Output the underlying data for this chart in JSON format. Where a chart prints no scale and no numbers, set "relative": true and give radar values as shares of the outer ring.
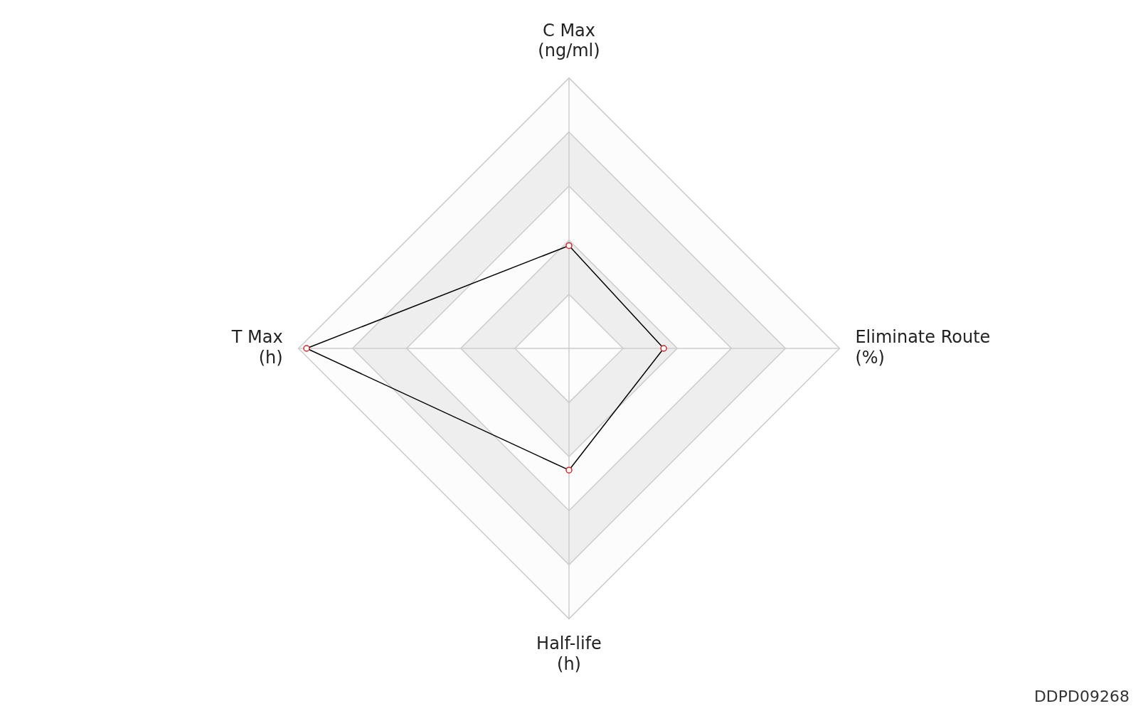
{
  "chart_data": {
    "type": "radar",
    "relative": true,
    "categories": [
      "C Max\n(ng/ml)",
      "Eliminate Route\n(%)",
      "Half-life\n(h)",
      "T Max\n(h)"
    ],
    "series": [
      {
        "color": "#000000",
        "values": [
          0.38,
          0.35,
          0.45,
          0.97
        ]
      }
    ],
    "marker": "circle",
    "grid": true,
    "legend": false,
    "annotations": [
      "DDPD09268"
    ]
  }
}
